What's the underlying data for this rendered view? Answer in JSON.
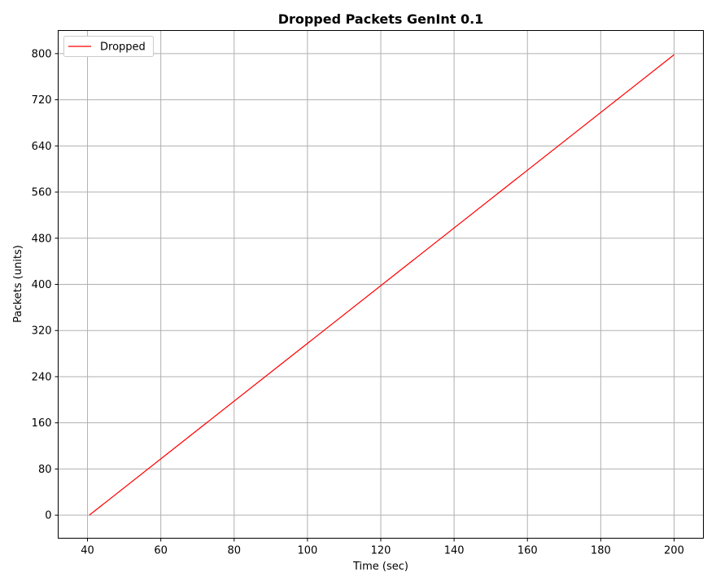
{
  "chart_data": {
    "type": "line",
    "title": "Dropped Packets GenInt 0.1",
    "xlabel": "Time (sec)",
    "ylabel": "Packets (units)",
    "xlim": [
      32,
      208
    ],
    "ylim": [
      -40,
      840
    ],
    "xticks": [
      40,
      60,
      80,
      100,
      120,
      140,
      160,
      180,
      200
    ],
    "yticks": [
      0,
      80,
      160,
      240,
      320,
      400,
      480,
      560,
      640,
      720,
      800
    ],
    "grid": true,
    "legend_position": "top-left",
    "series": [
      {
        "name": "Dropped",
        "color": "#ff0000",
        "x": [
          40.5,
          200
        ],
        "y": [
          0,
          798
        ]
      }
    ]
  }
}
